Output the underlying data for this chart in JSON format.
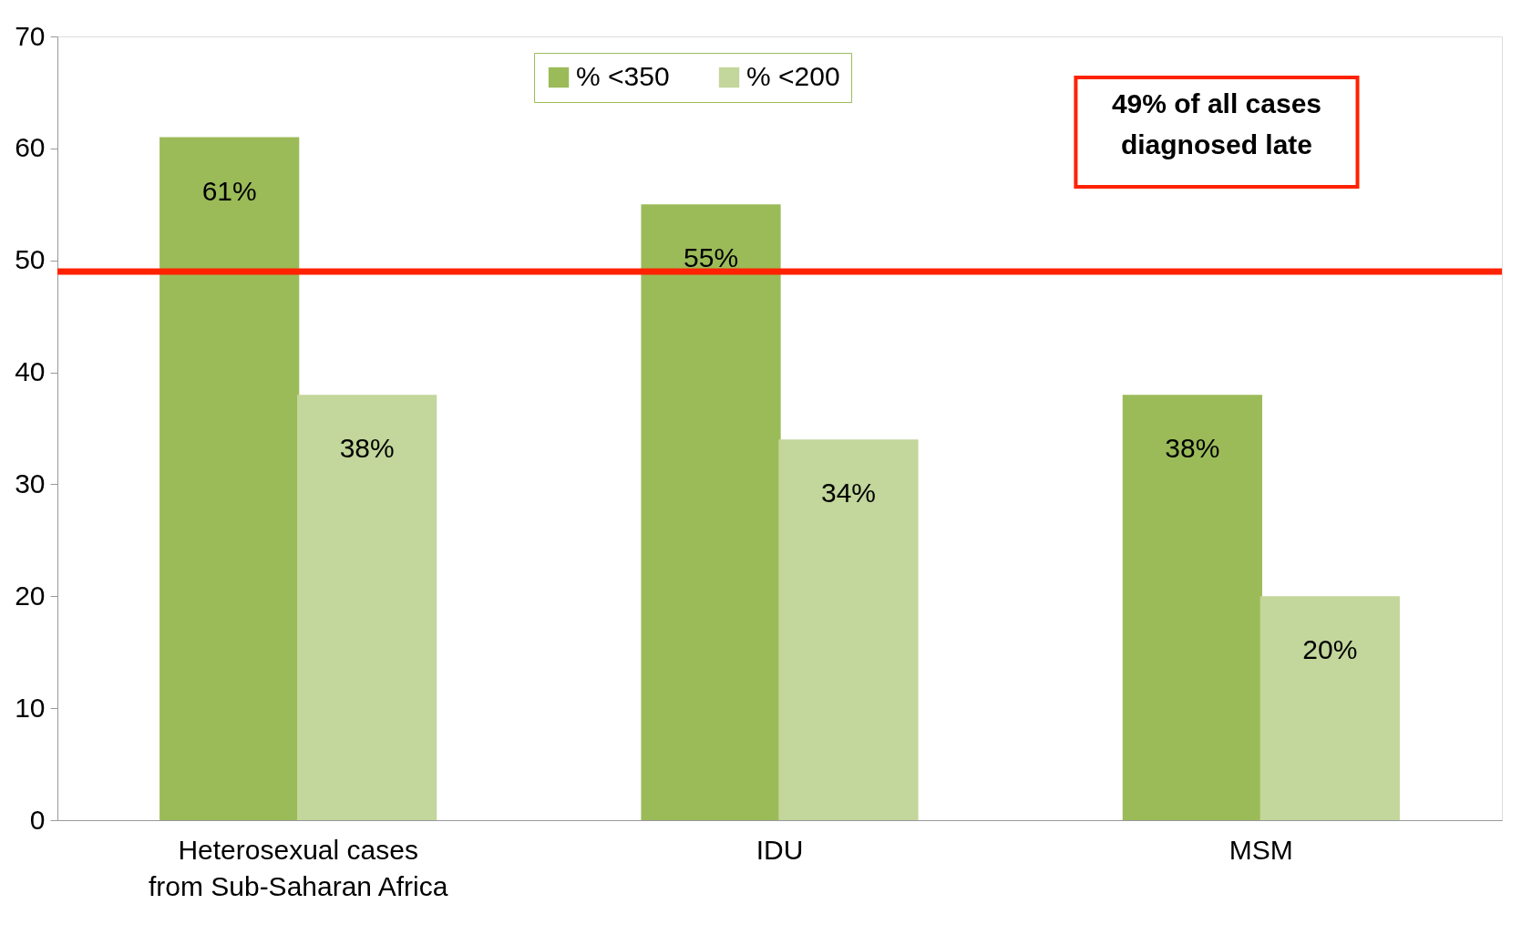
{
  "chart_data": {
    "type": "bar",
    "categories": [
      "Heterosexual cases from Sub-Saharan Africa",
      "IDU",
      "MSM"
    ],
    "series": [
      {
        "name": "% <350",
        "color": "#9bbb59",
        "values": [
          61,
          55,
          38
        ],
        "value_labels": [
          "61%",
          "55%",
          "38%"
        ]
      },
      {
        "name": "% <200",
        "color": "#c3d69b",
        "values": [
          38,
          34,
          20
        ],
        "value_labels": [
          "38%",
          "34%",
          "20%"
        ]
      }
    ],
    "ylim": [
      0,
      70
    ],
    "yticks": [
      0,
      10,
      20,
      30,
      40,
      50,
      60,
      70
    ],
    "ref_lines": [
      {
        "axis": "y",
        "value": 49,
        "color": "#ff2200"
      }
    ],
    "annotations": [
      "49% of all cases diagnosed late"
    ],
    "legend": "top",
    "grid": false
  }
}
